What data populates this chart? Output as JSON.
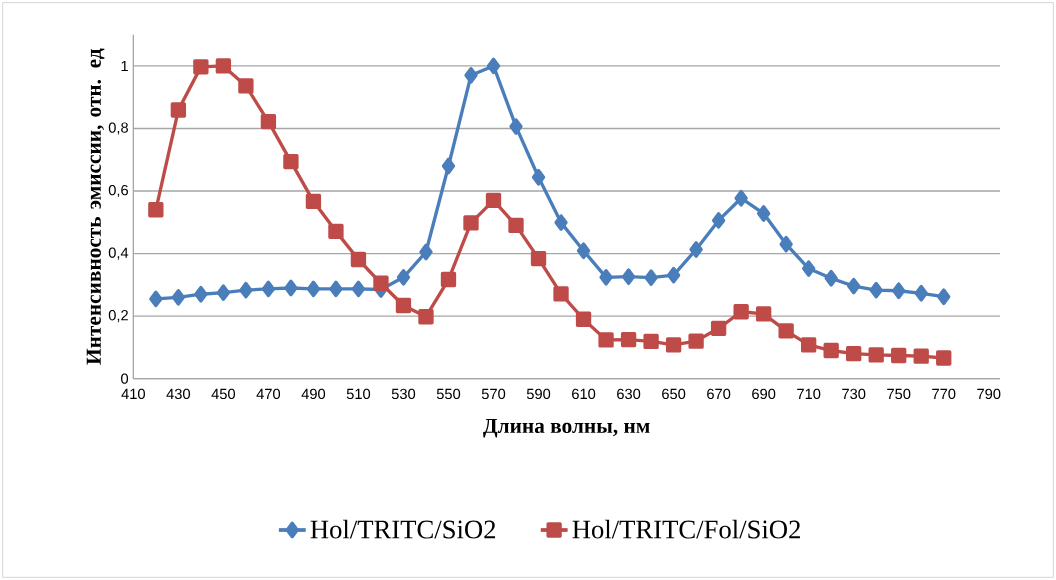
{
  "chart_data": {
    "type": "line",
    "xlabel": "Длина волны, нм",
    "ylabel": "Интенсивность эмиссии, отн. ед",
    "x": [
      420,
      430,
      440,
      450,
      460,
      470,
      480,
      490,
      500,
      510,
      520,
      530,
      540,
      550,
      560,
      570,
      580,
      590,
      600,
      610,
      620,
      630,
      640,
      650,
      660,
      670,
      680,
      690,
      700,
      710,
      720,
      730,
      740,
      750,
      760,
      770
    ],
    "series": [
      {
        "name": "Hol/TRITC/SiO2",
        "color": "#4a7ebb",
        "marker": "diamond",
        "values": [
          0.255,
          0.26,
          0.27,
          0.275,
          0.283,
          0.287,
          0.29,
          0.287,
          0.287,
          0.287,
          0.285,
          0.324,
          0.405,
          0.68,
          0.97,
          1.0,
          0.806,
          0.644,
          0.499,
          0.409,
          0.324,
          0.326,
          0.323,
          0.331,
          0.413,
          0.506,
          0.577,
          0.528,
          0.43,
          0.352,
          0.321,
          0.296,
          0.283,
          0.281,
          0.273,
          0.262
        ]
      },
      {
        "name": "Hol/TRITC/Fol/SiO2",
        "color": "#be4b48",
        "marker": "square",
        "values": [
          0.54,
          0.859,
          0.997,
          1.0,
          0.936,
          0.822,
          0.694,
          0.567,
          0.471,
          0.381,
          0.305,
          0.234,
          0.198,
          0.317,
          0.498,
          0.57,
          0.49,
          0.384,
          0.271,
          0.19,
          0.124,
          0.125,
          0.119,
          0.108,
          0.12,
          0.161,
          0.214,
          0.207,
          0.153,
          0.108,
          0.09,
          0.08,
          0.076,
          0.074,
          0.072,
          0.066
        ]
      }
    ],
    "xlim": [
      410,
      795
    ],
    "xticks": [
      410,
      430,
      450,
      470,
      490,
      510,
      530,
      550,
      570,
      590,
      610,
      630,
      650,
      670,
      690,
      710,
      730,
      750,
      770,
      790
    ],
    "ylim": [
      0,
      1.1
    ],
    "yticks": [
      0,
      {
        "value": 0.2,
        "label": "0,2"
      },
      {
        "value": 0.4,
        "label": "0,4"
      },
      {
        "value": 0.6,
        "label": "0,6"
      },
      {
        "value": 0.8,
        "label": "0,8"
      },
      1
    ],
    "grid": "y",
    "legend": "bottom",
    "line_style": "solid"
  }
}
